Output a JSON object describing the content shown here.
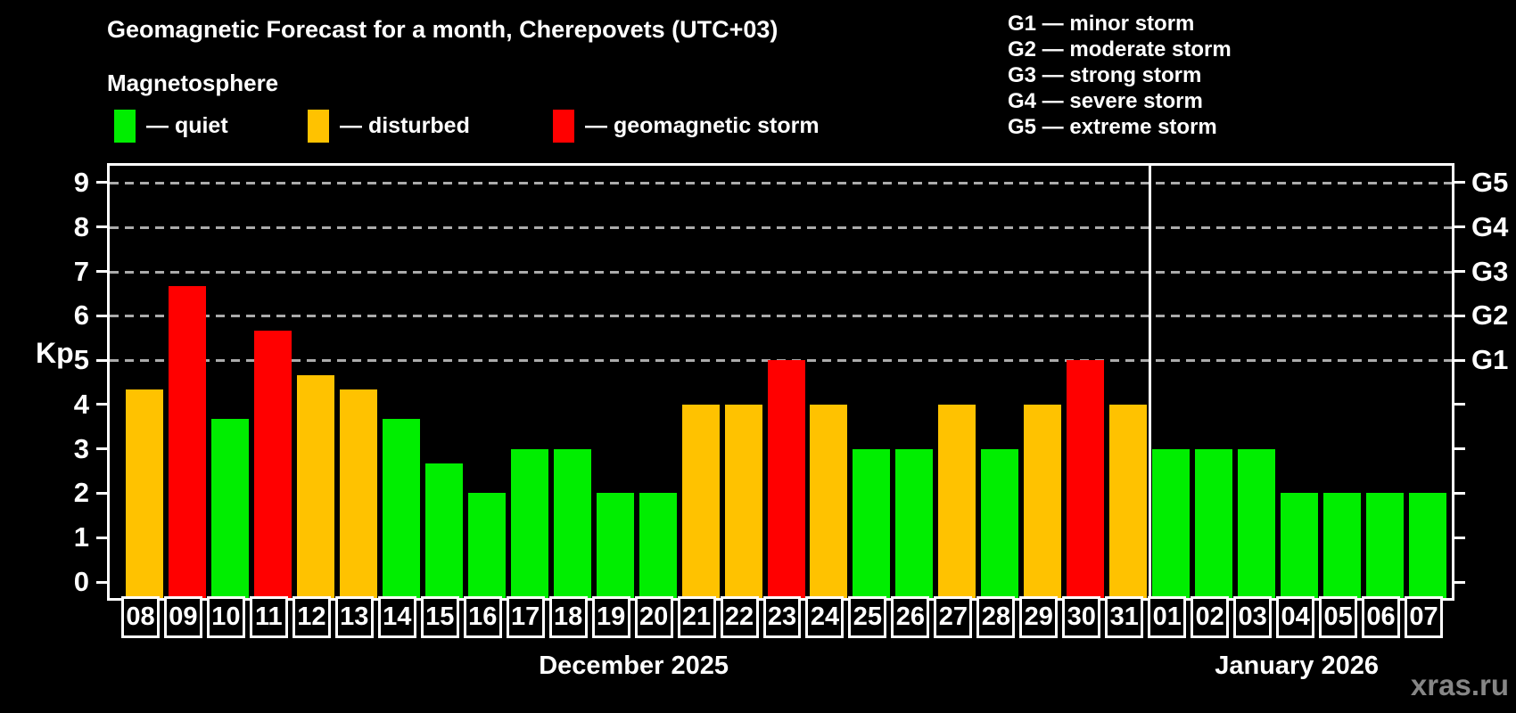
{
  "title": "Geomagnetic Forecast for a month, Cherepovets (UTC+03)",
  "subtitle": "Magnetosphere",
  "watermark": "xras.ru",
  "legend": {
    "items": [
      {
        "label": "— quiet",
        "status": "quiet",
        "color": "#00ee00"
      },
      {
        "label": "— disturbed",
        "status": "disturbed",
        "color": "#ffc200"
      },
      {
        "label": "— geomagnetic storm",
        "status": "storm",
        "color": "#ff0000"
      }
    ]
  },
  "g_legend": {
    "lines": [
      "G1 — minor storm",
      "G2 — moderate storm",
      "G3 — strong storm",
      "G4 — severe storm",
      "G5 — extreme storm"
    ]
  },
  "chart_data": {
    "type": "bar",
    "title": "Geomagnetic Forecast for a month, Cherepovets (UTC+03)",
    "ylabel": "Kp",
    "ylim": [
      0,
      9
    ],
    "grid": "dashed horizontal lines at storm levels only",
    "legend_position": "top-left",
    "y_ticks": [
      0,
      1,
      2,
      3,
      4,
      5,
      6,
      7,
      8,
      9
    ],
    "gridlines_kp": [
      5,
      6,
      7,
      8,
      9
    ],
    "right_axis_labels": [
      {
        "kp": 5,
        "label": "G1"
      },
      {
        "kp": 6,
        "label": "G2"
      },
      {
        "kp": 7,
        "label": "G3"
      },
      {
        "kp": 8,
        "label": "G4"
      },
      {
        "kp": 9,
        "label": "G5"
      }
    ],
    "status_colors": {
      "quiet": "#00ee00",
      "disturbed": "#ffc200",
      "storm": "#ff0000"
    },
    "months": [
      {
        "label": "December 2025",
        "days": 24
      },
      {
        "label": "January 2026",
        "days": 7
      }
    ],
    "bars": [
      {
        "day": "08",
        "kp": 4.33,
        "status": "disturbed"
      },
      {
        "day": "09",
        "kp": 6.67,
        "status": "storm"
      },
      {
        "day": "10",
        "kp": 3.67,
        "status": "quiet"
      },
      {
        "day": "11",
        "kp": 5.67,
        "status": "storm"
      },
      {
        "day": "12",
        "kp": 4.67,
        "status": "disturbed"
      },
      {
        "day": "13",
        "kp": 4.33,
        "status": "disturbed"
      },
      {
        "day": "14",
        "kp": 3.67,
        "status": "quiet"
      },
      {
        "day": "15",
        "kp": 2.67,
        "status": "quiet"
      },
      {
        "day": "16",
        "kp": 2,
        "status": "quiet"
      },
      {
        "day": "17",
        "kp": 3,
        "status": "quiet"
      },
      {
        "day": "18",
        "kp": 3,
        "status": "quiet"
      },
      {
        "day": "19",
        "kp": 2,
        "status": "quiet"
      },
      {
        "day": "20",
        "kp": 2,
        "status": "quiet"
      },
      {
        "day": "21",
        "kp": 4,
        "status": "disturbed"
      },
      {
        "day": "22",
        "kp": 4,
        "status": "disturbed"
      },
      {
        "day": "23",
        "kp": 5,
        "status": "storm"
      },
      {
        "day": "24",
        "kp": 4,
        "status": "disturbed"
      },
      {
        "day": "25",
        "kp": 3,
        "status": "quiet"
      },
      {
        "day": "26",
        "kp": 3,
        "status": "quiet"
      },
      {
        "day": "27",
        "kp": 4,
        "status": "disturbed"
      },
      {
        "day": "28",
        "kp": 3,
        "status": "quiet"
      },
      {
        "day": "29",
        "kp": 4,
        "status": "disturbed"
      },
      {
        "day": "30",
        "kp": 5,
        "status": "storm"
      },
      {
        "day": "31",
        "kp": 4,
        "status": "disturbed"
      },
      {
        "day": "01",
        "kp": 3,
        "status": "quiet"
      },
      {
        "day": "02",
        "kp": 3,
        "status": "quiet"
      },
      {
        "day": "03",
        "kp": 3,
        "status": "quiet"
      },
      {
        "day": "04",
        "kp": 2,
        "status": "quiet"
      },
      {
        "day": "05",
        "kp": 2,
        "status": "quiet"
      },
      {
        "day": "06",
        "kp": 2,
        "status": "quiet"
      },
      {
        "day": "07",
        "kp": 2,
        "status": "quiet"
      }
    ]
  }
}
